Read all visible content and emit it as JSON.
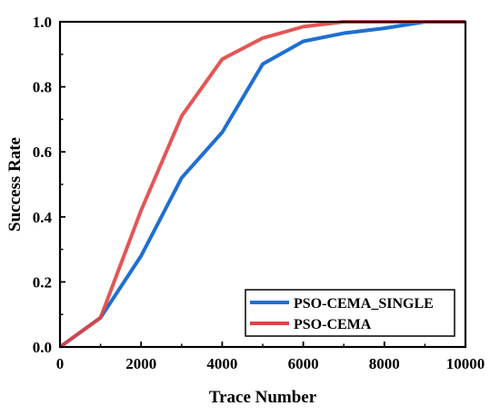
{
  "chart_data": {
    "type": "line",
    "title": "",
    "xlabel": "Trace Number",
    "ylabel": "Success Rate",
    "xlim": [
      0,
      10000
    ],
    "ylim": [
      0,
      1.0
    ],
    "x_ticks": [
      0,
      2000,
      4000,
      6000,
      8000,
      10000
    ],
    "y_ticks": [
      0.0,
      0.2,
      0.4,
      0.6,
      0.8,
      1.0
    ],
    "x_tick_labels": [
      "0",
      "2000",
      "4000",
      "6000",
      "8000",
      "10000"
    ],
    "y_tick_labels": [
      "0.0",
      "0.2",
      "0.4",
      "0.6",
      "0.8",
      "1.0"
    ],
    "grid": false,
    "legend_position": "bottom-right",
    "series": [
      {
        "name": "PSO-CEMA_SINGLE",
        "color": "#1f6fd1",
        "x": [
          0,
          1000,
          2000,
          3000,
          4000,
          5000,
          6000,
          7000,
          8000,
          9000,
          10000
        ],
        "y": [
          0.0,
          0.09,
          0.28,
          0.52,
          0.66,
          0.87,
          0.94,
          0.965,
          0.98,
          1.0,
          1.0
        ]
      },
      {
        "name": "PSO-CEMA",
        "color": "#e04444",
        "x": [
          0,
          1000,
          2000,
          3000,
          4000,
          5000,
          6000,
          7000,
          8000,
          9000,
          10000
        ],
        "y": [
          0.0,
          0.09,
          0.42,
          0.71,
          0.885,
          0.95,
          0.985,
          1.0,
          1.0,
          1.0,
          1.0
        ]
      }
    ]
  }
}
